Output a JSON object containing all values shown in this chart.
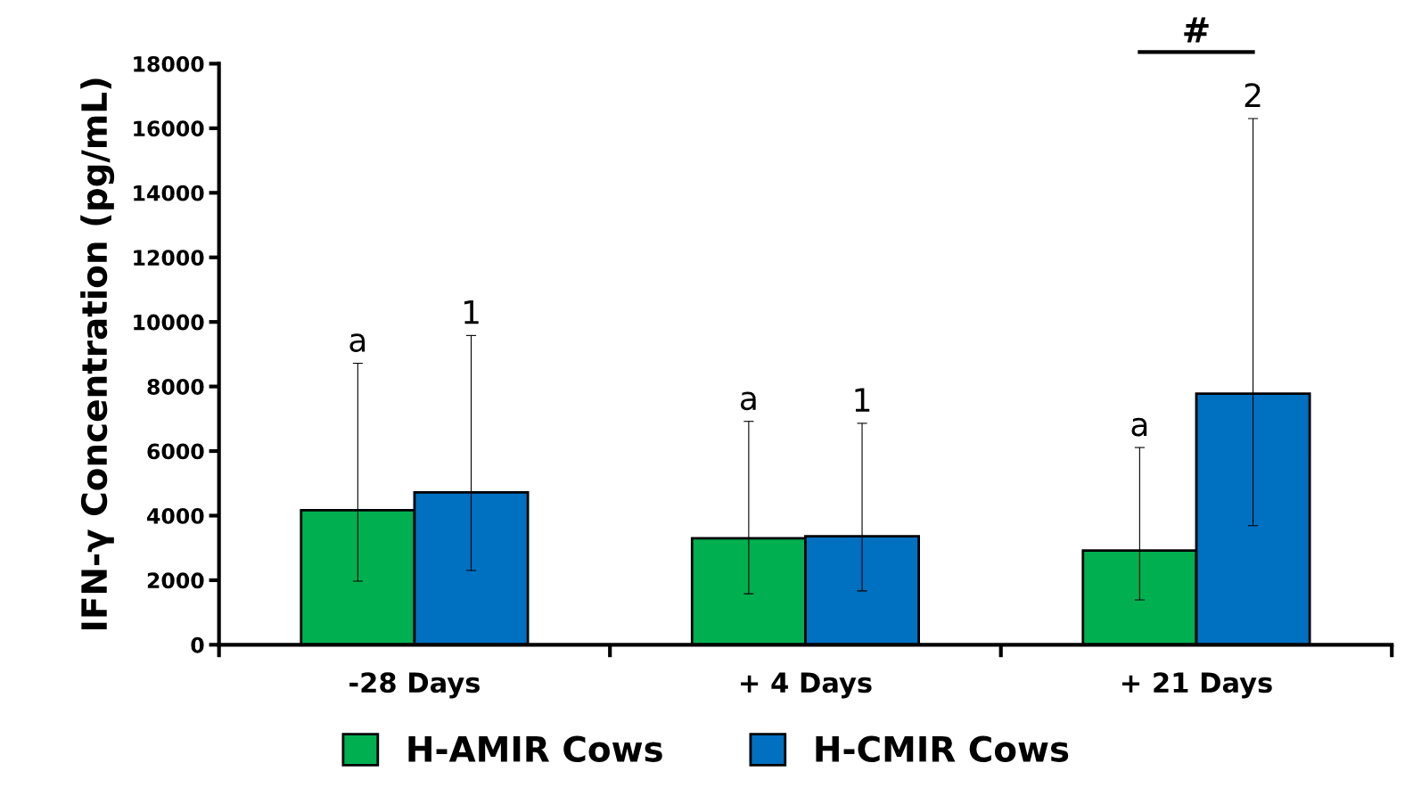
{
  "chart_data": {
    "type": "bar",
    "ylabel": "IFN-γ Concentration (pg/mL)",
    "categories": [
      "-28 Days",
      "+ 4 Days",
      "+ 21 Days"
    ],
    "series": [
      {
        "name": "H-AMIR Cows",
        "color": "#00b050",
        "values": [
          4170,
          3300,
          2920
        ],
        "errors": [
          [
            1970,
            8720
          ],
          [
            1580,
            6920
          ],
          [
            1390,
            6110
          ]
        ]
      },
      {
        "name": "H-CMIR Cows",
        "color": "#0070c0",
        "values": [
          4720,
          3360,
          7780
        ],
        "errors": [
          [
            2300,
            9580
          ],
          [
            1670,
            6860
          ],
          [
            3690,
            16300
          ]
        ]
      }
    ],
    "ylim": [
      0,
      18000
    ],
    "yticks": [
      0,
      2000,
      4000,
      6000,
      8000,
      10000,
      12000,
      14000,
      16000,
      18000
    ],
    "annotations": [
      "a",
      "1",
      "a",
      "1",
      "a",
      "2",
      "#"
    ],
    "legend": "bottom",
    "grid": false
  }
}
